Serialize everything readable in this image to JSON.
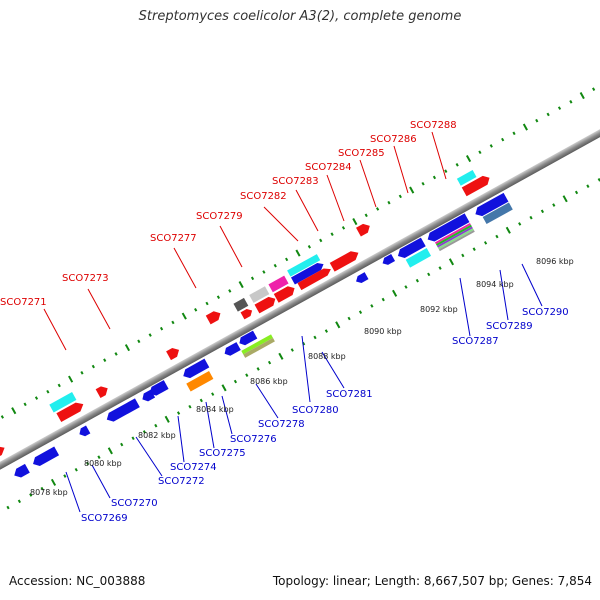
{
  "title": "Streptomyces coelicolor A3(2), complete genome",
  "footer": {
    "accession": "Accession: NC_003888",
    "stats": "Topology: linear; Length: 8,667,507 bp; Genes: 7,854"
  },
  "colors": {
    "top_strand_gene": "#ee1111",
    "bottom_strand_gene": "#1111dd",
    "top_label": "#dd0000",
    "bottom_label": "#0000cc",
    "tick": "#118811",
    "backbone": "#888888"
  },
  "ticks": [
    {
      "kbp": 8078,
      "label": "8078 kbp"
    },
    {
      "kbp": 8080,
      "label": "8080 kbp"
    },
    {
      "kbp": 8082,
      "label": "8082 kbp"
    },
    {
      "kbp": 8084,
      "label": "8084 kbp"
    },
    {
      "kbp": 8086,
      "label": "8086 kbp"
    },
    {
      "kbp": 8088,
      "label": "8088 kbp"
    },
    {
      "kbp": 8090,
      "label": "8090 kbp"
    },
    {
      "kbp": 8092,
      "label": "8092 kbp"
    },
    {
      "kbp": 8094,
      "label": "8094 kbp"
    },
    {
      "kbp": 8096,
      "label": "8096 kbp"
    }
  ],
  "top_labels": [
    {
      "label": "SCO7271"
    },
    {
      "label": "SCO7273"
    },
    {
      "label": "SCO7277"
    },
    {
      "label": "SCO7279"
    },
    {
      "label": "SCO7282"
    },
    {
      "label": "SCO7283"
    },
    {
      "label": "SCO7284"
    },
    {
      "label": "SCO7285"
    },
    {
      "label": "SCO7286"
    },
    {
      "label": "SCO7288"
    }
  ],
  "bottom_labels": [
    {
      "label": "SCO7269"
    },
    {
      "label": "SCO7270"
    },
    {
      "label": "SCO7272"
    },
    {
      "label": "SCO7274"
    },
    {
      "label": "SCO7275"
    },
    {
      "label": "SCO7276"
    },
    {
      "label": "SCO7278"
    },
    {
      "label": "SCO7280"
    },
    {
      "label": "SCO7281"
    },
    {
      "label": "SCO7287"
    },
    {
      "label": "SCO7289"
    },
    {
      "label": "SCO7290"
    }
  ]
}
